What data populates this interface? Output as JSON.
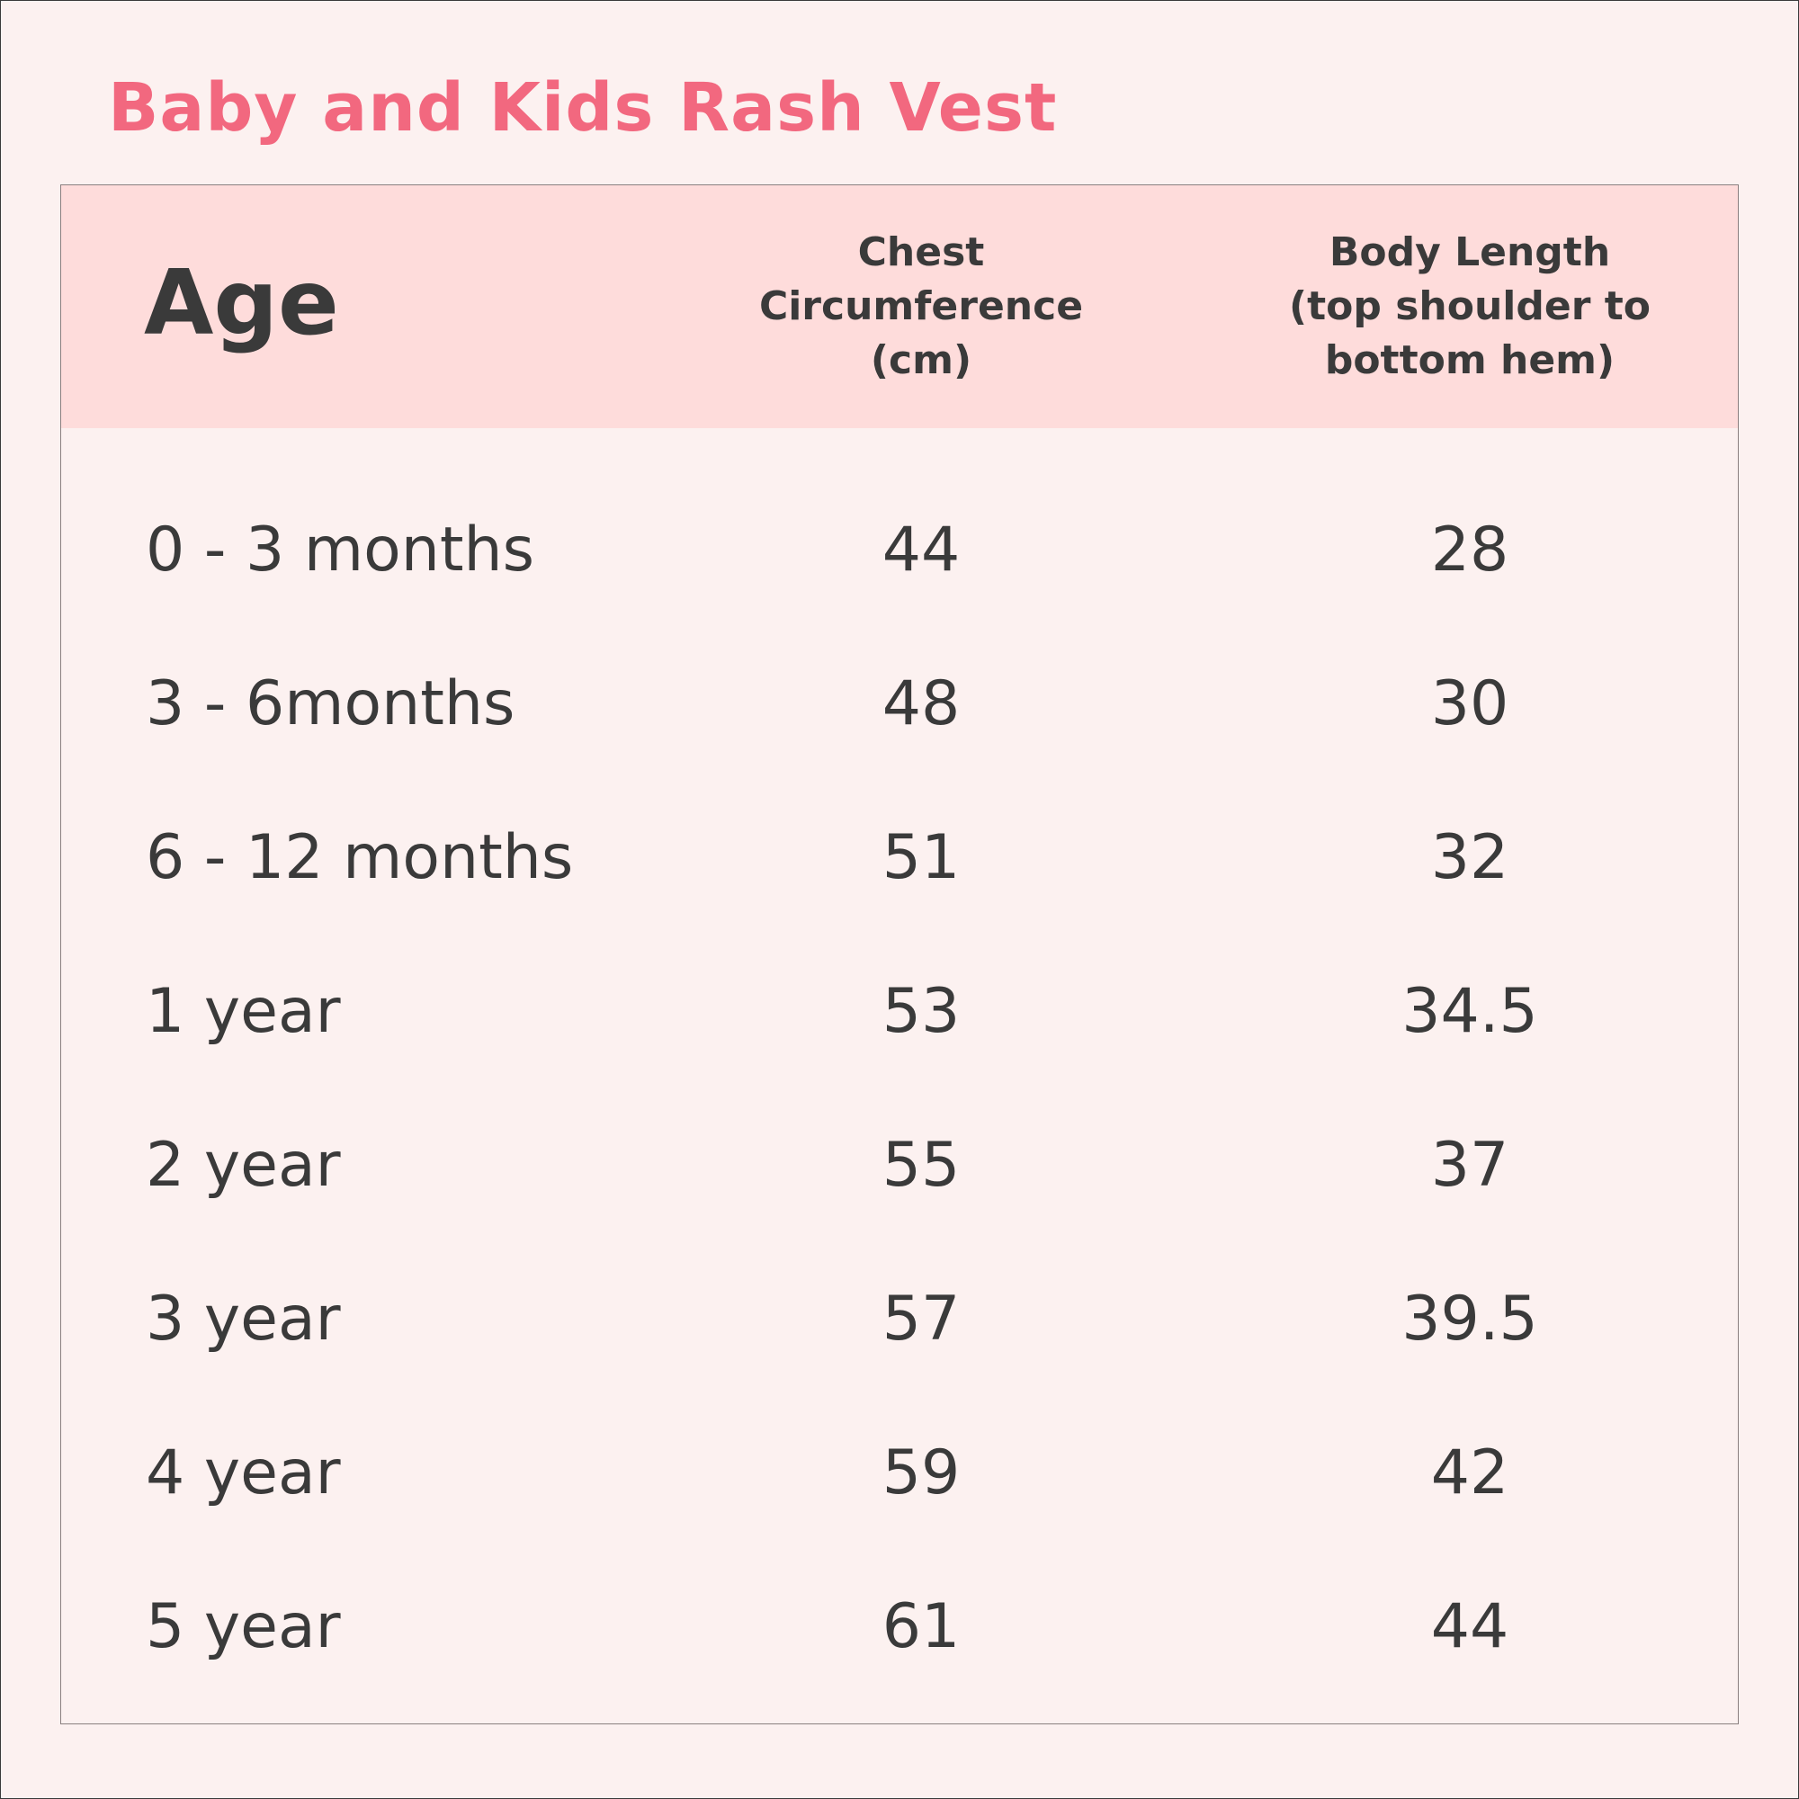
{
  "title": "Baby and Kids Rash Vest",
  "table": {
    "headers": {
      "age": "Age",
      "chest": "Chest\nCircumference\n(cm)",
      "body": "Body Length\n(top shoulder to\nbottom hem)"
    },
    "rows": [
      {
        "age": "0 - 3 months",
        "chest": "44",
        "body": "28"
      },
      {
        "age": "3 - 6months",
        "chest": "48",
        "body": "30"
      },
      {
        "age": "6 - 12 months",
        "chest": "51",
        "body": "32"
      },
      {
        "age": "1 year",
        "chest": "53",
        "body": "34.5"
      },
      {
        "age": "2 year",
        "chest": "55",
        "body": "37"
      },
      {
        "age": "3 year",
        "chest": "57",
        "body": "39.5"
      },
      {
        "age": "4 year",
        "chest": "59",
        "body": "42"
      },
      {
        "age": "5 year",
        "chest": "61",
        "body": "44"
      }
    ]
  },
  "colors": {
    "title": "#f2687f",
    "header_bg": "#fedcdb",
    "page_bg": "#fcf1f0",
    "text": "#3a3a3a"
  }
}
